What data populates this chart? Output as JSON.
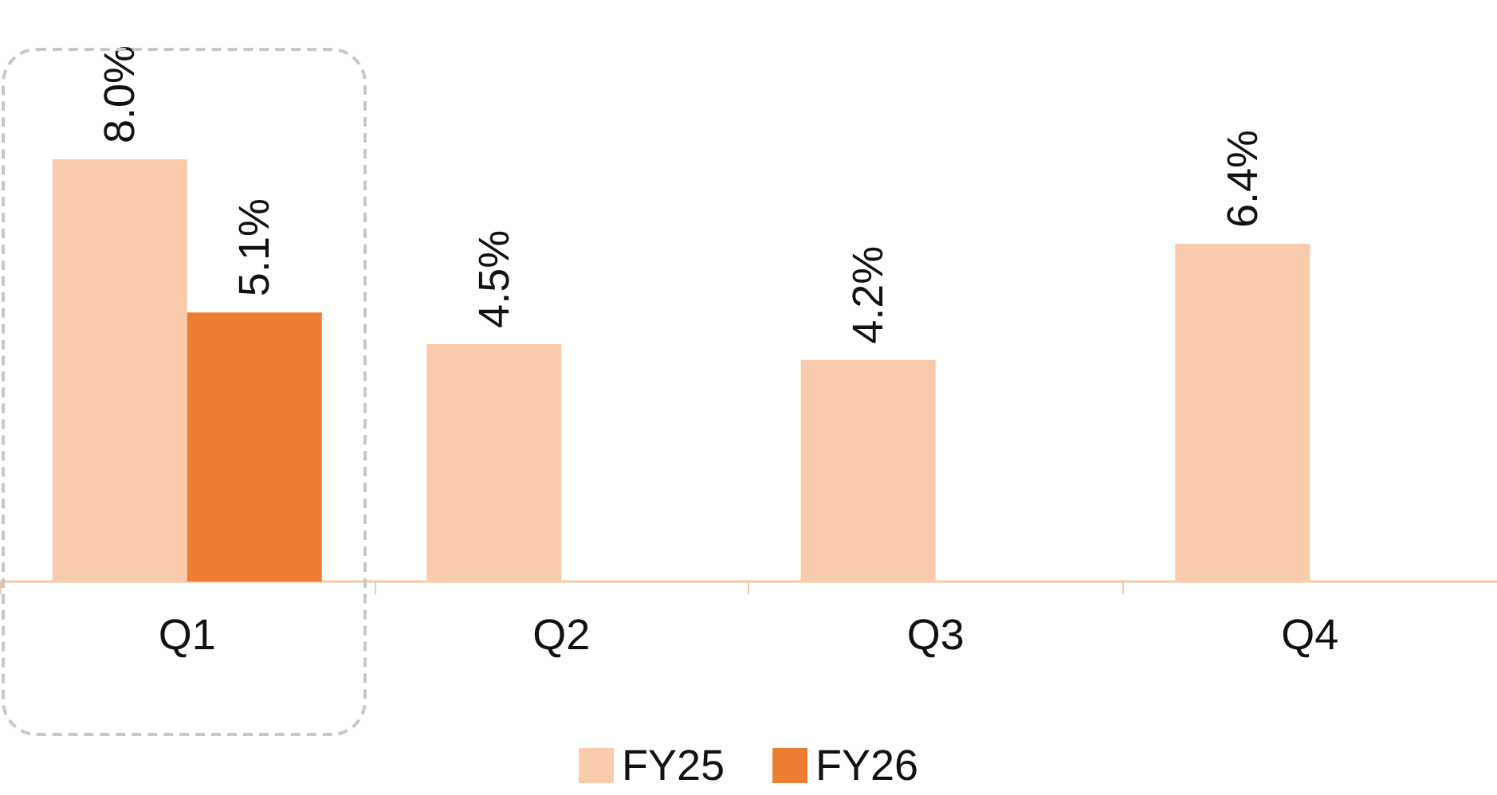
{
  "chart_data": {
    "type": "bar",
    "categories": [
      "Q1",
      "Q2",
      "Q3",
      "Q4"
    ],
    "series": [
      {
        "name": "FY25",
        "color": "#f8cbad",
        "values": [
          8.0,
          4.5,
          4.2,
          6.4
        ],
        "value_labels": [
          "8.0%",
          "4.5%",
          "4.2%",
          "6.4%"
        ]
      },
      {
        "name": "FY26",
        "color": "#ed7d31",
        "values": [
          5.1,
          null,
          null,
          null
        ],
        "value_labels": [
          "5.1%",
          null,
          null,
          null
        ]
      }
    ],
    "legend": "bottom"
  }
}
